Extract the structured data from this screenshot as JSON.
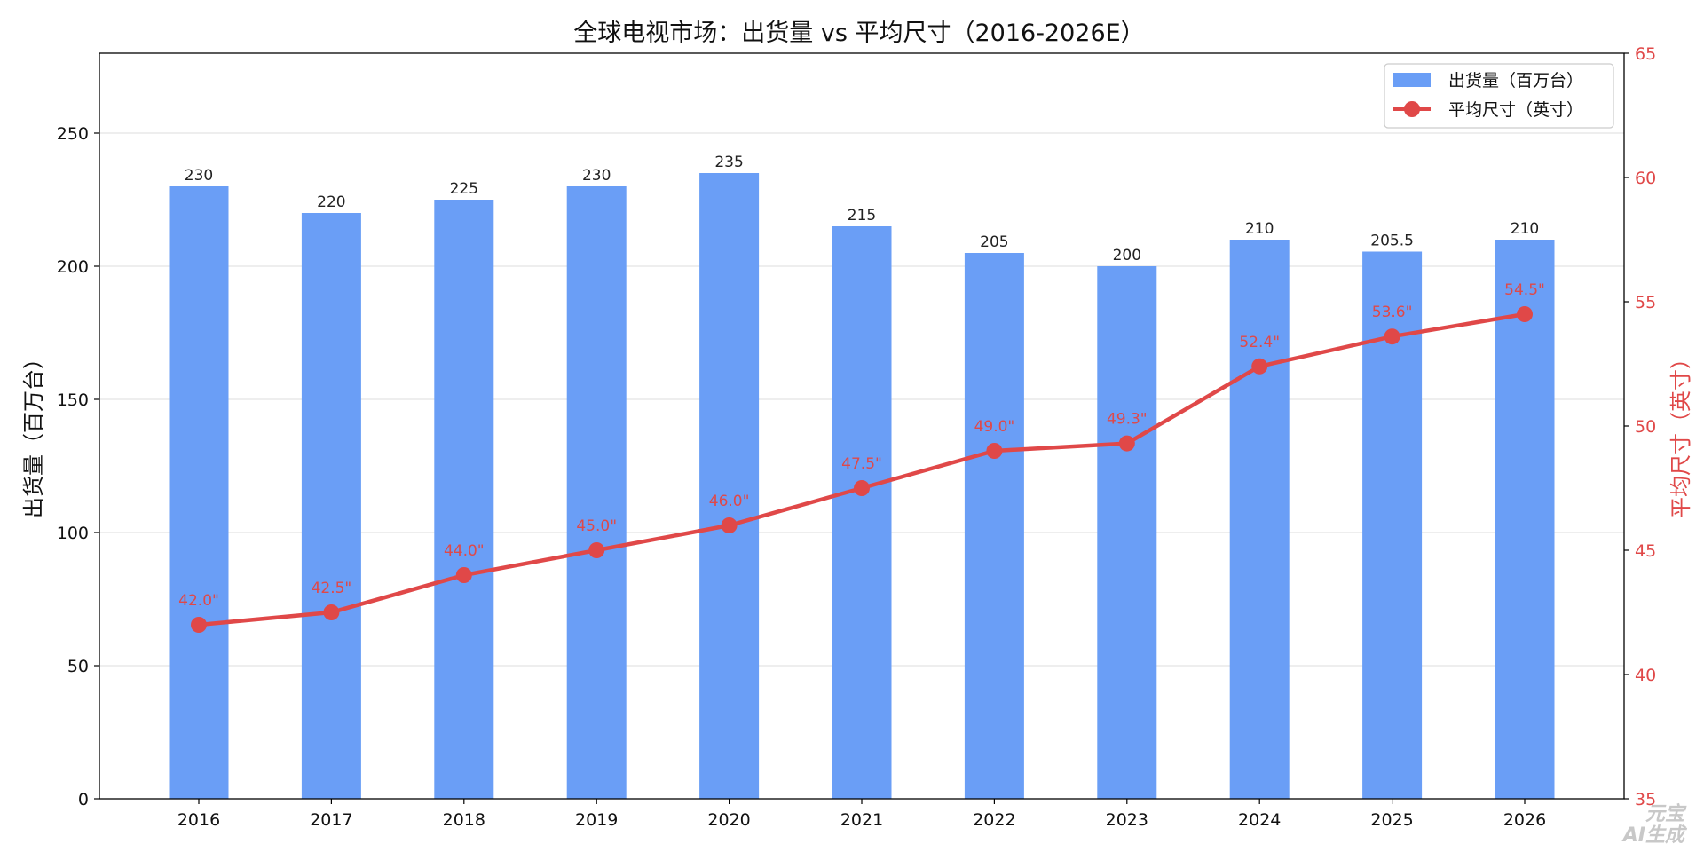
{
  "chart_data": {
    "type": "bar+line",
    "title": "全球电视市场：出货量 vs 平均尺寸（2016-2026E）",
    "categories": [
      "2016",
      "2017",
      "2018",
      "2019",
      "2020",
      "2021",
      "2022",
      "2023",
      "2024",
      "2025",
      "2026"
    ],
    "series": [
      {
        "name": "出货量（百万台）",
        "type": "bar",
        "axis": "left",
        "values": [
          230,
          220,
          225,
          230,
          235,
          215,
          205,
          200,
          210,
          205.5,
          210
        ],
        "labels": [
          "230",
          "220",
          "225",
          "230",
          "235",
          "215",
          "205",
          "200",
          "210",
          "205.5",
          "210"
        ],
        "color": "#6a9ef6"
      },
      {
        "name": "平均尺寸（英寸）",
        "type": "line",
        "axis": "right",
        "values": [
          42.0,
          42.5,
          44.0,
          45.0,
          46.0,
          47.5,
          49.0,
          49.3,
          52.4,
          53.6,
          54.5
        ],
        "labels": [
          "42.0\"",
          "42.5\"",
          "44.0\"",
          "45.0\"",
          "46.0\"",
          "47.5\"",
          "49.0\"",
          "49.3\"",
          "52.4\"",
          "53.6\"",
          "54.5\""
        ],
        "color": "#e04848"
      }
    ],
    "y_left": {
      "label": "出货量（百万台）",
      "range": [
        0,
        280
      ],
      "ticks": [
        0,
        50,
        100,
        150,
        200,
        250
      ],
      "tick_labels": [
        "0",
        "50",
        "100",
        "150",
        "200",
        "250"
      ]
    },
    "y_right": {
      "label": "平均尺寸（英寸）",
      "range": [
        35,
        65
      ],
      "ticks": [
        35,
        40,
        45,
        50,
        55,
        60,
        65
      ],
      "tick_labels": [
        "35",
        "40",
        "45",
        "50",
        "55",
        "60",
        "65"
      ],
      "color": "#e04848"
    },
    "grid": "horizontal",
    "legend_position": "top-right"
  },
  "watermark": {
    "line1": "元宝",
    "line2": "AI生成"
  }
}
